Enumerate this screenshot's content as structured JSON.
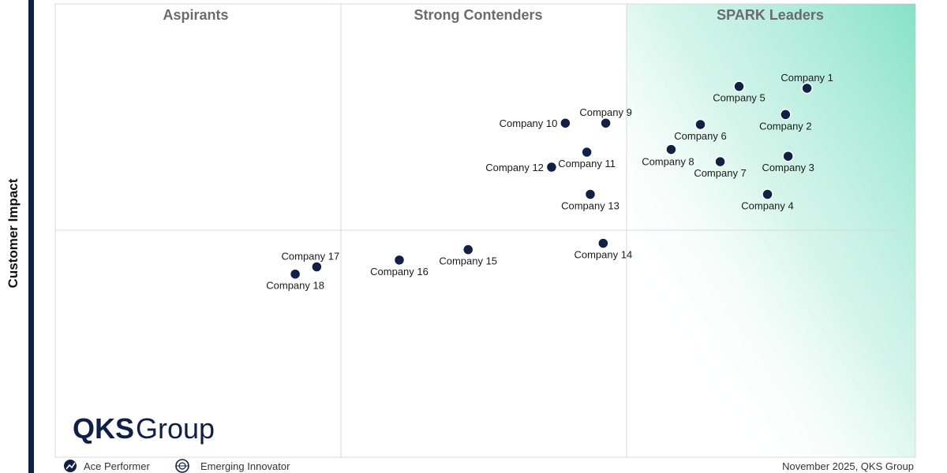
{
  "chart_data": {
    "type": "scatter",
    "ylabel": "Customer Impact",
    "quadrants": [
      {
        "name": "Aspirants",
        "position": "top-left"
      },
      {
        "name": "Strong Contenders",
        "position": "top-center"
      },
      {
        "name": "SPARK Leaders",
        "position": "top-right"
      }
    ],
    "points": [
      {
        "label": "Company 1",
        "x": 0.874,
        "y": 0.814,
        "label_side": "above"
      },
      {
        "label": "Company 2",
        "x": 0.849,
        "y": 0.756,
        "label_side": "below"
      },
      {
        "label": "Company 3",
        "x": 0.852,
        "y": 0.664,
        "label_side": "below"
      },
      {
        "label": "Company 4",
        "x": 0.828,
        "y": 0.58,
        "label_side": "below"
      },
      {
        "label": "Company 5",
        "x": 0.795,
        "y": 0.818,
        "label_side": "below"
      },
      {
        "label": "Company 6",
        "x": 0.75,
        "y": 0.734,
        "label_side": "below"
      },
      {
        "label": "Company 7",
        "x": 0.773,
        "y": 0.652,
        "label_side": "below"
      },
      {
        "label": "Company 8",
        "x": 0.716,
        "y": 0.679,
        "label_side": "below-left"
      },
      {
        "label": "Company 9",
        "x": 0.64,
        "y": 0.737,
        "label_side": "above"
      },
      {
        "label": "Company 10",
        "x": 0.593,
        "y": 0.737,
        "label_side": "left"
      },
      {
        "label": "Company 11",
        "x": 0.618,
        "y": 0.673,
        "label_side": "below"
      },
      {
        "label": "Company 12",
        "x": 0.577,
        "y": 0.64,
        "label_side": "left"
      },
      {
        "label": "Company 13",
        "x": 0.622,
        "y": 0.58,
        "label_side": "below"
      },
      {
        "label": "Company 14",
        "x": 0.637,
        "y": 0.472,
        "label_side": "below"
      },
      {
        "label": "Company 15",
        "x": 0.48,
        "y": 0.458,
        "label_side": "below"
      },
      {
        "label": "Company 16",
        "x": 0.4,
        "y": 0.435,
        "label_side": "below"
      },
      {
        "label": "Company 17",
        "x": 0.304,
        "y": 0.42,
        "label_side": "above-left"
      },
      {
        "label": "Company 18",
        "x": 0.279,
        "y": 0.404,
        "label_side": "below"
      }
    ],
    "legend": [
      {
        "name": "Ace Performer",
        "icon": "trend-up-icon"
      },
      {
        "name": "Emerging Innovator",
        "icon": "globe-icon"
      }
    ],
    "legend_placement": "bottom-left",
    "grid": true,
    "point_color": "#0f2147"
  },
  "logo": {
    "part1": "QKS",
    "part2": "Group"
  },
  "footer": {
    "note": "November 2025, QKS Group"
  },
  "colors": {
    "accent_green": "#7fe0c4",
    "left_border": "#0d1f4a",
    "grid_line": "#d9d9d9"
  }
}
